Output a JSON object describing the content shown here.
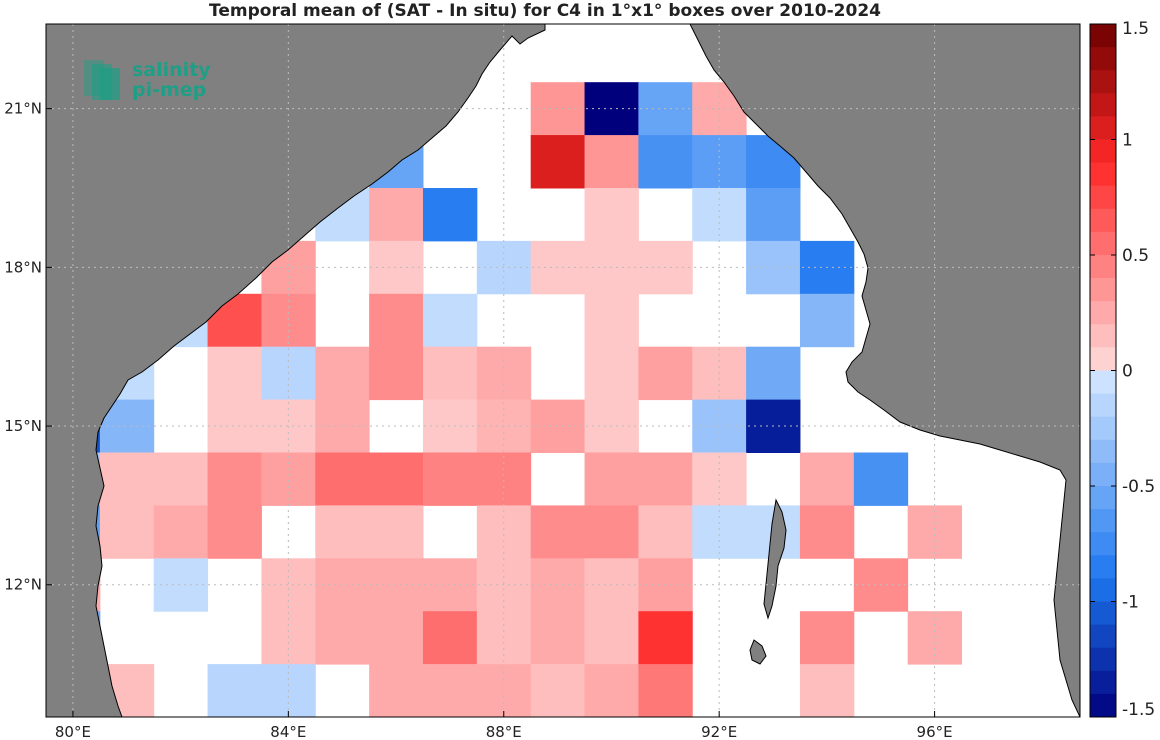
{
  "title": "Temporal mean of (SAT - In situ) for C4 in 1°x1° boxes over 2010-2024",
  "logo": {
    "line1": "salinity",
    "line2": "pi-mep"
  },
  "x_ticks": [
    {
      "deg": 80,
      "label": "80°E"
    },
    {
      "deg": 84,
      "label": "84°E"
    },
    {
      "deg": 88,
      "label": "88°E"
    },
    {
      "deg": 92,
      "label": "92°E"
    },
    {
      "deg": 96,
      "label": "96°E"
    }
  ],
  "y_ticks": [
    {
      "deg": 21,
      "label": "21°N"
    },
    {
      "deg": 18,
      "label": "18°N"
    },
    {
      "deg": 15,
      "label": "15°N"
    },
    {
      "deg": 12,
      "label": "12°N"
    }
  ],
  "colorbar": {
    "min": -1.5,
    "max": 1.5,
    "levels": 30,
    "ticks": [
      {
        "value": 1.5,
        "label": "1.5"
      },
      {
        "value": 1,
        "label": "1"
      },
      {
        "value": 0.5,
        "label": "0.5"
      },
      {
        "value": 0,
        "label": "0"
      },
      {
        "value": -0.5,
        "label": "-0.5"
      },
      {
        "value": -1,
        "label": "-1"
      },
      {
        "value": -1.5,
        "label": "-1.5"
      }
    ]
  },
  "colors": {
    "land": "#808080",
    "ocean": "#ffffff",
    "grid": "#bbbbbb",
    "logo": "#1f9e86"
  },
  "chart_data": {
    "type": "heatmap",
    "x_range_deg_e": [
      79.5,
      98.7
    ],
    "y_range_deg_n": [
      9.5,
      22.6
    ],
    "grid": true,
    "units": "1°x1° boxes, value = mean difference",
    "cells": [
      {
        "lon": 89,
        "lat": 21,
        "value": 0.35
      },
      {
        "lon": 90,
        "lat": 21,
        "value": -1.5
      },
      {
        "lon": 91,
        "lat": 21,
        "value": -0.55
      },
      {
        "lon": 92,
        "lat": 21,
        "value": 0.25
      },
      {
        "lon": 86,
        "lat": 20,
        "value": -0.55
      },
      {
        "lon": 89,
        "lat": 20,
        "value": 1.05
      },
      {
        "lon": 90,
        "lat": 20,
        "value": 0.35
      },
      {
        "lon": 91,
        "lat": 20,
        "value": -0.7
      },
      {
        "lon": 92,
        "lat": 20,
        "value": -0.6
      },
      {
        "lon": 93,
        "lat": 20,
        "value": -0.75
      },
      {
        "lon": 85,
        "lat": 19,
        "value": -0.1
      },
      {
        "lon": 86,
        "lat": 19,
        "value": 0.25
      },
      {
        "lon": 87,
        "lat": 19,
        "value": -0.85
      },
      {
        "lon": 90,
        "lat": 19,
        "value": 0.1
      },
      {
        "lon": 92,
        "lat": 19,
        "value": -0.1
      },
      {
        "lon": 93,
        "lat": 19,
        "value": -0.6
      },
      {
        "lon": 84,
        "lat": 18,
        "value": 0.3
      },
      {
        "lon": 86,
        "lat": 18,
        "value": 0.1
      },
      {
        "lon": 88,
        "lat": 18,
        "value": -0.15
      },
      {
        "lon": 89,
        "lat": 18,
        "value": 0.1
      },
      {
        "lon": 90,
        "lat": 18,
        "value": 0.1
      },
      {
        "lon": 91,
        "lat": 18,
        "value": 0.1
      },
      {
        "lon": 93,
        "lat": 18,
        "value": -0.3
      },
      {
        "lon": 94,
        "lat": 18,
        "value": -0.85
      },
      {
        "lon": 82,
        "lat": 17,
        "value": -0.1
      },
      {
        "lon": 83,
        "lat": 17,
        "value": 0.7
      },
      {
        "lon": 84,
        "lat": 17,
        "value": 0.4
      },
      {
        "lon": 86,
        "lat": 17,
        "value": 0.4
      },
      {
        "lon": 87,
        "lat": 17,
        "value": -0.1
      },
      {
        "lon": 90,
        "lat": 17,
        "value": 0.1
      },
      {
        "lon": 94,
        "lat": 17,
        "value": -0.4
      },
      {
        "lon": 81,
        "lat": 16,
        "value": -0.1
      },
      {
        "lon": 83,
        "lat": 16,
        "value": 0.1
      },
      {
        "lon": 84,
        "lat": 16,
        "value": -0.15
      },
      {
        "lon": 85,
        "lat": 16,
        "value": 0.25
      },
      {
        "lon": 86,
        "lat": 16,
        "value": 0.4
      },
      {
        "lon": 87,
        "lat": 16,
        "value": 0.15
      },
      {
        "lon": 88,
        "lat": 16,
        "value": 0.25
      },
      {
        "lon": 90,
        "lat": 16,
        "value": 0.1
      },
      {
        "lon": 91,
        "lat": 16,
        "value": 0.3
      },
      {
        "lon": 92,
        "lat": 16,
        "value": 0.15
      },
      {
        "lon": 93,
        "lat": 16,
        "value": -0.5
      },
      {
        "lon": 80,
        "lat": 15,
        "value": -1.1
      },
      {
        "lon": 81,
        "lat": 15,
        "value": -0.4
      },
      {
        "lon": 83,
        "lat": 15,
        "value": 0.1
      },
      {
        "lon": 84,
        "lat": 15,
        "value": 0.1
      },
      {
        "lon": 85,
        "lat": 15,
        "value": 0.25
      },
      {
        "lon": 87,
        "lat": 15,
        "value": 0.1
      },
      {
        "lon": 88,
        "lat": 15,
        "value": 0.2
      },
      {
        "lon": 89,
        "lat": 15,
        "value": 0.3
      },
      {
        "lon": 90,
        "lat": 15,
        "value": 0.1
      },
      {
        "lon": 92,
        "lat": 15,
        "value": -0.3
      },
      {
        "lon": 93,
        "lat": 15,
        "value": -1.35
      },
      {
        "lon": 80,
        "lat": 14,
        "value": -0.25
      },
      {
        "lon": 81,
        "lat": 14,
        "value": 0.15
      },
      {
        "lon": 82,
        "lat": 14,
        "value": 0.15
      },
      {
        "lon": 83,
        "lat": 14,
        "value": 0.4
      },
      {
        "lon": 84,
        "lat": 14,
        "value": 0.3
      },
      {
        "lon": 85,
        "lat": 14,
        "value": 0.55
      },
      {
        "lon": 86,
        "lat": 14,
        "value": 0.55
      },
      {
        "lon": 87,
        "lat": 14,
        "value": 0.45
      },
      {
        "lon": 88,
        "lat": 14,
        "value": 0.45
      },
      {
        "lon": 90,
        "lat": 14,
        "value": 0.3
      },
      {
        "lon": 91,
        "lat": 14,
        "value": 0.3
      },
      {
        "lon": 92,
        "lat": 14,
        "value": 0.1
      },
      {
        "lon": 94,
        "lat": 14,
        "value": 0.25
      },
      {
        "lon": 95,
        "lat": 14,
        "value": -0.7
      },
      {
        "lon": 80,
        "lat": 13,
        "value": -0.6
      },
      {
        "lon": 81,
        "lat": 13,
        "value": 0.15
      },
      {
        "lon": 82,
        "lat": 13,
        "value": 0.25
      },
      {
        "lon": 83,
        "lat": 13,
        "value": 0.4
      },
      {
        "lon": 85,
        "lat": 13,
        "value": 0.15
      },
      {
        "lon": 86,
        "lat": 13,
        "value": 0.15
      },
      {
        "lon": 88,
        "lat": 13,
        "value": 0.15
      },
      {
        "lon": 89,
        "lat": 13,
        "value": 0.4
      },
      {
        "lon": 90,
        "lat": 13,
        "value": 0.4
      },
      {
        "lon": 91,
        "lat": 13,
        "value": 0.15
      },
      {
        "lon": 92,
        "lat": 13,
        "value": -0.1
      },
      {
        "lon": 93,
        "lat": 13,
        "value": -0.1
      },
      {
        "lon": 94,
        "lat": 13,
        "value": 0.4
      },
      {
        "lon": 96,
        "lat": 13,
        "value": 0.25
      },
      {
        "lon": 80,
        "lat": 12,
        "value": 0.25
      },
      {
        "lon": 82,
        "lat": 12,
        "value": -0.1
      },
      {
        "lon": 84,
        "lat": 12,
        "value": 0.15
      },
      {
        "lon": 85,
        "lat": 12,
        "value": 0.25
      },
      {
        "lon": 86,
        "lat": 12,
        "value": 0.25
      },
      {
        "lon": 87,
        "lat": 12,
        "value": 0.25
      },
      {
        "lon": 88,
        "lat": 12,
        "value": 0.15
      },
      {
        "lon": 89,
        "lat": 12,
        "value": 0.25
      },
      {
        "lon": 90,
        "lat": 12,
        "value": 0.15
      },
      {
        "lon": 91,
        "lat": 12,
        "value": 0.3
      },
      {
        "lon": 95,
        "lat": 12,
        "value": 0.4
      },
      {
        "lon": 80,
        "lat": 11,
        "value": -0.5
      },
      {
        "lon": 84,
        "lat": 11,
        "value": 0.15
      },
      {
        "lon": 85,
        "lat": 11,
        "value": 0.25
      },
      {
        "lon": 86,
        "lat": 11,
        "value": 0.25
      },
      {
        "lon": 87,
        "lat": 11,
        "value": 0.55
      },
      {
        "lon": 88,
        "lat": 11,
        "value": 0.15
      },
      {
        "lon": 89,
        "lat": 11,
        "value": 0.25
      },
      {
        "lon": 90,
        "lat": 11,
        "value": 0.15
      },
      {
        "lon": 91,
        "lat": 11,
        "value": 0.85
      },
      {
        "lon": 94,
        "lat": 11,
        "value": 0.4
      },
      {
        "lon": 96,
        "lat": 11,
        "value": 0.25
      },
      {
        "lon": 80,
        "lat": 10,
        "value": -0.35
      },
      {
        "lon": 81,
        "lat": 10,
        "value": 0.15
      },
      {
        "lon": 83,
        "lat": 10,
        "value": -0.15
      },
      {
        "lon": 84,
        "lat": 10,
        "value": -0.15
      },
      {
        "lon": 86,
        "lat": 10,
        "value": 0.25
      },
      {
        "lon": 87,
        "lat": 10,
        "value": 0.25
      },
      {
        "lon": 88,
        "lat": 10,
        "value": 0.25
      },
      {
        "lon": 89,
        "lat": 10,
        "value": 0.15
      },
      {
        "lon": 90,
        "lat": 10,
        "value": 0.25
      },
      {
        "lon": 91,
        "lat": 10,
        "value": 0.5
      },
      {
        "lon": 94,
        "lat": 10,
        "value": 0.15
      }
    ]
  }
}
